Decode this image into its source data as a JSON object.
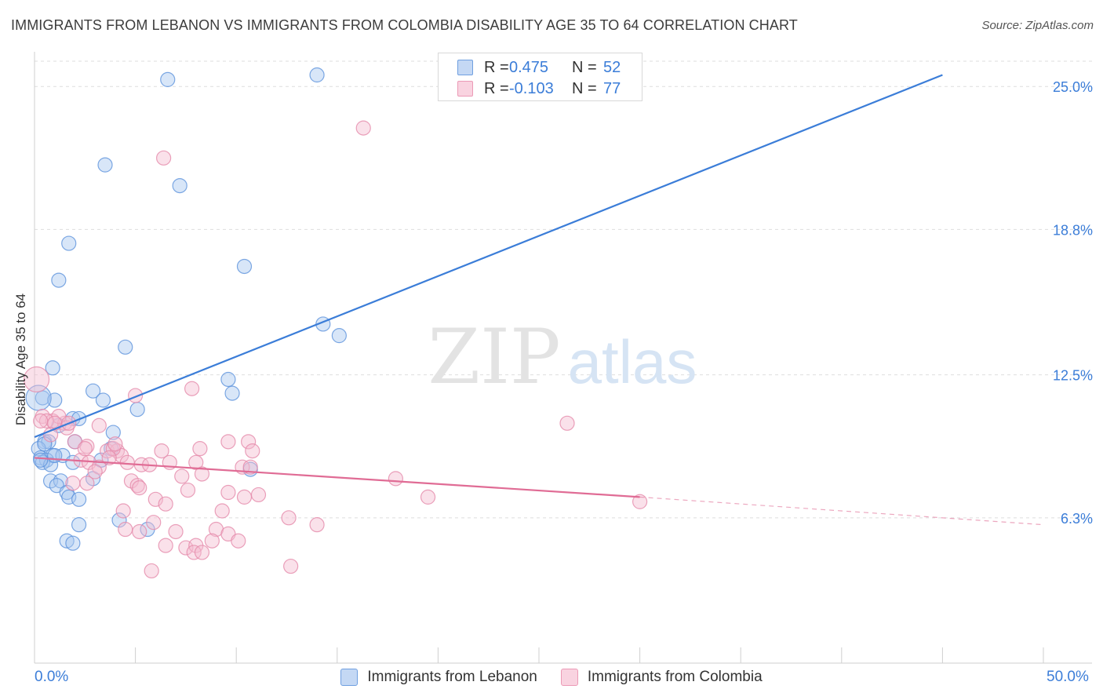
{
  "title": "IMMIGRANTS FROM LEBANON VS IMMIGRANTS FROM COLOMBIA DISABILITY AGE 35 TO 64 CORRELATION CHART",
  "source": "Source: ZipAtlas.com",
  "watermark": {
    "zip": "ZIP",
    "atlas": "atlas"
  },
  "colors": {
    "blue": "#3b7dd8",
    "blue_fill": "#a9c8f0",
    "pink": "#e07098",
    "pink_fill": "#f5b8cc"
  },
  "legend_top": {
    "rows": [
      {
        "r_label": "R =",
        "r_value": "0.475",
        "n_label": "N =",
        "n_value": "52"
      },
      {
        "r_label": "R =",
        "r_value": "-0.103",
        "n_label": "N =",
        "n_value": "77"
      }
    ]
  },
  "legend_bottom": [
    {
      "label": "Immigrants from Lebanon"
    },
    {
      "label": "Immigrants from Colombia"
    }
  ],
  "chart_data": {
    "type": "scatter",
    "title": "IMMIGRANTS FROM LEBANON VS IMMIGRANTS FROM COLOMBIA DISABILITY AGE 35 TO 64 CORRELATION CHART",
    "xlabel": "",
    "ylabel": "Disability Age 35 to 64",
    "xlim": [
      0,
      50
    ],
    "ylim": [
      0,
      26.3
    ],
    "x_tick_labels": [
      "0.0%",
      "50.0%"
    ],
    "y_ticks": [
      6.3,
      12.5,
      18.8,
      25.0
    ],
    "y_tick_labels": [
      "6.3%",
      "12.5%",
      "18.8%",
      "25.0%"
    ],
    "grid": true,
    "legend_position": "top-center",
    "series": [
      {
        "name": "Immigrants from Lebanon",
        "color": "#3b7dd8",
        "trend": {
          "x": [
            0,
            45.0
          ],
          "y": [
            9.8,
            25.5
          ]
        },
        "points": [
          [
            6.6,
            25.3
          ],
          [
            14.0,
            25.5
          ],
          [
            3.5,
            21.6
          ],
          [
            7.2,
            20.7
          ],
          [
            1.7,
            18.2
          ],
          [
            10.4,
            17.2
          ],
          [
            1.2,
            16.6
          ],
          [
            14.3,
            14.7
          ],
          [
            15.1,
            14.2
          ],
          [
            4.5,
            13.7
          ],
          [
            0.9,
            12.8
          ],
          [
            9.6,
            12.3
          ],
          [
            9.8,
            11.7
          ],
          [
            2.9,
            11.8
          ],
          [
            0.4,
            11.5
          ],
          [
            1.0,
            11.4
          ],
          [
            3.4,
            11.4
          ],
          [
            5.1,
            11.0
          ],
          [
            1.9,
            10.6
          ],
          [
            2.2,
            10.6
          ],
          [
            1.2,
            10.3
          ],
          [
            3.9,
            10.0
          ],
          [
            0.5,
            9.6
          ],
          [
            0.7,
            9.6
          ],
          [
            2.0,
            9.6
          ],
          [
            0.2,
            9.3
          ],
          [
            3.8,
            9.3
          ],
          [
            0.9,
            9.0
          ],
          [
            1.4,
            9.0
          ],
          [
            0.3,
            8.9
          ],
          [
            0.6,
            8.8
          ],
          [
            0.4,
            8.7
          ],
          [
            0.8,
            8.6
          ],
          [
            3.3,
            8.8
          ],
          [
            1.9,
            8.7
          ],
          [
            10.7,
            8.4
          ],
          [
            2.9,
            8.0
          ],
          [
            0.8,
            7.9
          ],
          [
            1.3,
            7.9
          ],
          [
            1.1,
            7.7
          ],
          [
            1.6,
            7.4
          ],
          [
            1.7,
            7.2
          ],
          [
            2.2,
            7.1
          ],
          [
            4.2,
            6.2
          ],
          [
            5.6,
            5.8
          ],
          [
            2.2,
            6.0
          ],
          [
            1.6,
            5.3
          ],
          [
            1.9,
            5.2
          ],
          [
            0.3,
            8.8
          ],
          [
            0.5,
            9.5
          ],
          [
            1.0,
            9.0
          ],
          [
            0.2,
            11.5
          ]
        ]
      },
      {
        "name": "Immigrants from Colombia",
        "color": "#e07098",
        "trend": {
          "x": [
            0,
            30.0
          ],
          "y": [
            8.9,
            7.2
          ]
        },
        "trend_dashed": {
          "x": [
            30.0,
            50.0
          ],
          "y": [
            7.2,
            6.0
          ]
        },
        "points": [
          [
            16.3,
            23.2
          ],
          [
            6.4,
            21.9
          ],
          [
            0.1,
            12.3
          ],
          [
            7.8,
            11.9
          ],
          [
            5.0,
            11.6
          ],
          [
            26.4,
            10.4
          ],
          [
            0.4,
            10.7
          ],
          [
            0.9,
            10.5
          ],
          [
            1.5,
            10.4
          ],
          [
            1.2,
            10.7
          ],
          [
            0.6,
            10.5
          ],
          [
            3.2,
            10.3
          ],
          [
            1.0,
            10.4
          ],
          [
            1.6,
            10.2
          ],
          [
            9.6,
            9.6
          ],
          [
            10.6,
            9.6
          ],
          [
            8.2,
            9.3
          ],
          [
            6.3,
            9.2
          ],
          [
            10.8,
            9.2
          ],
          [
            3.6,
            9.2
          ],
          [
            2.0,
            9.6
          ],
          [
            2.6,
            9.4
          ],
          [
            4.1,
            9.2
          ],
          [
            4.3,
            9.0
          ],
          [
            3.9,
            9.3
          ],
          [
            2.3,
            8.8
          ],
          [
            2.7,
            8.7
          ],
          [
            3.2,
            8.5
          ],
          [
            4.6,
            8.7
          ],
          [
            5.3,
            8.6
          ],
          [
            5.7,
            8.6
          ],
          [
            8.0,
            8.7
          ],
          [
            10.3,
            8.5
          ],
          [
            10.7,
            8.5
          ],
          [
            3.0,
            8.3
          ],
          [
            7.3,
            8.1
          ],
          [
            8.3,
            8.2
          ],
          [
            17.9,
            8.0
          ],
          [
            4.8,
            7.9
          ],
          [
            2.6,
            7.8
          ],
          [
            1.9,
            7.8
          ],
          [
            5.1,
            7.7
          ],
          [
            5.2,
            7.6
          ],
          [
            7.6,
            7.5
          ],
          [
            9.6,
            7.4
          ],
          [
            11.1,
            7.3
          ],
          [
            10.4,
            7.2
          ],
          [
            19.5,
            7.2
          ],
          [
            6.0,
            7.1
          ],
          [
            6.5,
            6.9
          ],
          [
            4.4,
            6.6
          ],
          [
            9.3,
            6.6
          ],
          [
            12.6,
            6.3
          ],
          [
            14.0,
            6.0
          ],
          [
            5.9,
            6.1
          ],
          [
            4.5,
            5.8
          ],
          [
            5.2,
            5.7
          ],
          [
            7.0,
            5.7
          ],
          [
            9.0,
            5.8
          ],
          [
            9.6,
            5.6
          ],
          [
            6.5,
            5.1
          ],
          [
            7.5,
            5.0
          ],
          [
            8.0,
            5.1
          ],
          [
            8.8,
            5.3
          ],
          [
            10.1,
            5.3
          ],
          [
            7.9,
            4.8
          ],
          [
            8.3,
            4.8
          ],
          [
            12.7,
            4.2
          ],
          [
            5.8,
            4.0
          ],
          [
            30.0,
            7.0
          ],
          [
            0.3,
            10.5
          ],
          [
            0.8,
            9.9
          ],
          [
            1.7,
            10.4
          ],
          [
            2.5,
            9.3
          ],
          [
            3.7,
            8.9
          ],
          [
            4.0,
            9.5
          ],
          [
            6.7,
            8.7
          ]
        ]
      }
    ]
  }
}
